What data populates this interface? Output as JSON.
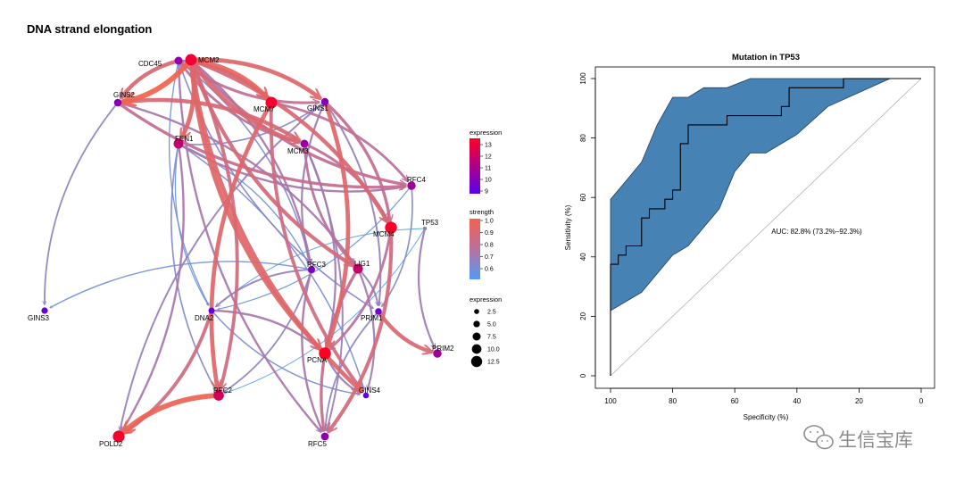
{
  "chart_data": [
    {
      "type": "network",
      "title": "DNA strand elongation",
      "nodes": [
        {
          "id": "CDC45",
          "label": "CDC45",
          "expression": 10.0
        },
        {
          "id": "MCM2",
          "label": "MCM2",
          "expression": 12.6
        },
        {
          "id": "GINS2",
          "label": "GINS2",
          "expression": 9.7
        },
        {
          "id": "MCM7",
          "label": "MCM7",
          "expression": 12.7
        },
        {
          "id": "GINS1",
          "label": "GINS1",
          "expression": 9.6
        },
        {
          "id": "FEN1",
          "label": "FEN1",
          "expression": 11.3
        },
        {
          "id": "MCM3",
          "label": "MCM3",
          "expression": 10.0
        },
        {
          "id": "RFC4",
          "label": "RFC4",
          "expression": 10.3
        },
        {
          "id": "MCM4",
          "label": "MCM4",
          "expression": 12.9
        },
        {
          "id": "TP53",
          "label": "TP53",
          "expression": 1.5
        },
        {
          "id": "RFC3",
          "label": "RFC3",
          "expression": 9.3
        },
        {
          "id": "LIG1",
          "label": "LIG1",
          "expression": 11.4
        },
        {
          "id": "GINS3",
          "label": "GINS3",
          "expression": 8.8
        },
        {
          "id": "DNA2",
          "label": "DNA2",
          "expression": 8.6
        },
        {
          "id": "PRIM1",
          "label": "PRIM1",
          "expression": 9.0
        },
        {
          "id": "PRIM2",
          "label": "PRIM2",
          "expression": 10.3
        },
        {
          "id": "PCNA",
          "label": "PCNA",
          "expression": 13.0
        },
        {
          "id": "RFC2",
          "label": "RFC2",
          "expression": 11.8
        },
        {
          "id": "GINS4",
          "label": "GINS4",
          "expression": 8.4
        },
        {
          "id": "POLD2",
          "label": "POLD2",
          "expression": 12.8
        },
        {
          "id": "RFC5",
          "label": "RFC5",
          "expression": 9.9
        }
      ],
      "edges": [
        {
          "from": "MCM2",
          "to": "GINS2",
          "strength": 1.0
        },
        {
          "from": "MCM2",
          "to": "MCM7",
          "strength": 0.95
        },
        {
          "from": "MCM2",
          "to": "GINS1",
          "strength": 0.92
        },
        {
          "from": "MCM2",
          "to": "FEN1",
          "strength": 0.93
        },
        {
          "from": "MCM2",
          "to": "MCM3",
          "strength": 0.9
        },
        {
          "from": "MCM2",
          "to": "MCM4",
          "strength": 0.9
        },
        {
          "from": "MCM2",
          "to": "RFC4",
          "strength": 0.82
        },
        {
          "from": "MCM2",
          "to": "LIG1",
          "strength": 0.88
        },
        {
          "from": "MCM2",
          "to": "PCNA",
          "strength": 0.93
        },
        {
          "from": "MCM2",
          "to": "GINS4",
          "strength": 0.92
        },
        {
          "from": "MCM2",
          "to": "RFC2",
          "strength": 0.86
        },
        {
          "from": "MCM2",
          "to": "RFC3",
          "strength": 0.74
        },
        {
          "from": "CDC45",
          "to": "GINS2",
          "strength": 0.9
        },
        {
          "from": "CDC45",
          "to": "MCM7",
          "strength": 0.82
        },
        {
          "from": "CDC45",
          "to": "GINS1",
          "strength": 0.8
        },
        {
          "from": "CDC45",
          "to": "MCM3",
          "strength": 0.78
        },
        {
          "from": "CDC45",
          "to": "DNA2",
          "strength": 0.62
        },
        {
          "from": "CDC45",
          "to": "RFC3",
          "strength": 0.65
        },
        {
          "from": "CDC45",
          "to": "PRIM1",
          "strength": 0.66
        },
        {
          "from": "CDC45",
          "to": "RFC5",
          "strength": 0.74
        },
        {
          "from": "GINS2",
          "to": "MCM3",
          "strength": 0.9
        },
        {
          "from": "GINS2",
          "to": "RFC4",
          "strength": 0.82
        },
        {
          "from": "GINS2",
          "to": "GINS3",
          "strength": 0.68
        },
        {
          "from": "GINS2",
          "to": "LIG1",
          "strength": 0.74
        },
        {
          "from": "GINS1",
          "to": "MCM4",
          "strength": 0.82
        },
        {
          "from": "GINS1",
          "to": "PCNA",
          "strength": 0.92
        },
        {
          "from": "GINS1",
          "to": "RFC3",
          "strength": 0.72
        },
        {
          "from": "GINS1",
          "to": "PRIM1",
          "strength": 0.7
        },
        {
          "from": "GINS1",
          "to": "POLD2",
          "strength": 0.7
        },
        {
          "from": "GINS1",
          "to": "FEN1",
          "strength": 0.66
        },
        {
          "from": "MCM7",
          "to": "RFC4",
          "strength": 0.78
        },
        {
          "from": "MCM7",
          "to": "RFC2",
          "strength": 0.92
        },
        {
          "from": "MCM7",
          "to": "GINS4",
          "strength": 0.86
        },
        {
          "from": "FEN1",
          "to": "RFC4",
          "strength": 0.74
        },
        {
          "from": "FEN1",
          "to": "POLD2",
          "strength": 0.74
        },
        {
          "from": "FEN1",
          "to": "RFC3",
          "strength": 0.62
        },
        {
          "from": "FEN1",
          "to": "DNA2",
          "strength": 0.6
        },
        {
          "from": "FEN1",
          "to": "RFC2",
          "strength": 0.66
        },
        {
          "from": "FEN1",
          "to": "GINS4",
          "strength": 0.64
        },
        {
          "from": "MCM3",
          "to": "LIG1",
          "strength": 0.78
        },
        {
          "from": "MCM3",
          "to": "RFC5",
          "strength": 0.7
        },
        {
          "from": "MCM3",
          "to": "PCNA",
          "strength": 0.72
        },
        {
          "from": "MCM3",
          "to": "MCM4",
          "strength": 0.8
        },
        {
          "from": "RFC4",
          "to": "PRIM1",
          "strength": 0.66
        },
        {
          "from": "RFC4",
          "to": "DNA2",
          "strength": 0.6
        },
        {
          "from": "MCM4",
          "to": "RFC5",
          "strength": 0.88
        },
        {
          "from": "MCM4",
          "to": "PCNA",
          "strength": 0.78
        },
        {
          "from": "TP53",
          "to": "PRIM2",
          "strength": 0.72
        },
        {
          "from": "TP53",
          "to": "DNA2",
          "strength": 0.55
        },
        {
          "from": "TP53",
          "to": "RFC2",
          "strength": 0.55
        },
        {
          "from": "RFC3",
          "to": "GINS3",
          "strength": 0.62
        },
        {
          "from": "RFC3",
          "to": "RFC2",
          "strength": 0.68
        },
        {
          "from": "RFC3",
          "to": "RFC5",
          "strength": 0.74
        },
        {
          "from": "RFC3",
          "to": "DNA2",
          "strength": 0.7
        },
        {
          "from": "LIG1",
          "to": "RFC5",
          "strength": 0.82
        },
        {
          "from": "LIG1",
          "to": "PRIM1",
          "strength": 0.7
        },
        {
          "from": "LIG1",
          "to": "GINS4",
          "strength": 0.72
        },
        {
          "from": "DNA2",
          "to": "POLD2",
          "strength": 0.86
        },
        {
          "from": "DNA2",
          "to": "PCNA",
          "strength": 0.74
        },
        {
          "from": "DNA2",
          "to": "GINS4",
          "strength": 0.64
        },
        {
          "from": "PRIM1",
          "to": "PRIM2",
          "strength": 0.9
        },
        {
          "from": "PRIM1",
          "to": "RFC5",
          "strength": 0.68
        },
        {
          "from": "PCNA",
          "to": "GINS4",
          "strength": 0.72
        },
        {
          "from": "RFC2",
          "to": "POLD2",
          "strength": 0.98
        }
      ],
      "legend_expression_color": {
        "title": "expression",
        "ticks": [
          "9",
          "10",
          "11",
          "12",
          "13"
        ],
        "low_color": "#5a00ee",
        "high_color": "#ff0022"
      },
      "legend_strength": {
        "title": "strength",
        "ticks": [
          "0.6",
          "0.7",
          "0.8",
          "0.9",
          "1.0"
        ],
        "low_color": "#4f9cf4",
        "mid_color": "#b9709e",
        "high_color": "#f2624e"
      },
      "legend_expression_size": {
        "title": "expression",
        "ticks": [
          "2.5",
          "5.0",
          "7.5",
          "10.0",
          "12.5"
        ]
      }
    },
    {
      "type": "line",
      "title": "Mutation in TP53",
      "xlabel": "Specificity (%)",
      "ylabel": "Sensitivity (%)",
      "xlim": [
        100,
        0
      ],
      "ylim": [
        0,
        100
      ],
      "xticks": [
        100,
        80,
        60,
        40,
        20,
        0
      ],
      "yticks": [
        0,
        20,
        40,
        60,
        80,
        100
      ],
      "annotation": "AUC: 82.8% (73.2%–92.3%)",
      "series": [
        {
          "name": "ROC",
          "x": [
            100,
            100,
            97.5,
            97.5,
            95,
            95,
            90,
            90,
            87.5,
            87.5,
            82.5,
            82.5,
            80,
            80,
            77.5,
            77.5,
            75,
            75,
            72.5,
            72.5,
            62.5,
            62.5,
            47.5,
            47.5,
            45,
            45,
            42.5,
            42.5,
            25,
            25,
            0
          ],
          "y": [
            0,
            37.5,
            37.5,
            40.6,
            40.6,
            43.7,
            43.7,
            53.1,
            53.1,
            56.2,
            56.2,
            59.4,
            59.4,
            62.5,
            62.5,
            78.1,
            78.1,
            84.4,
            84.4,
            84.4,
            84.4,
            87.5,
            87.5,
            87.5,
            87.5,
            90.6,
            90.6,
            96.9,
            96.9,
            100,
            100
          ]
        },
        {
          "name": "CI upper",
          "x": [
            100,
            95,
            90,
            85,
            80,
            75,
            70,
            62.5,
            55,
            40,
            25,
            10
          ],
          "y": [
            59.4,
            65.6,
            71.9,
            84.4,
            93.7,
            93.7,
            96.9,
            96.9,
            100,
            100,
            100,
            100
          ]
        },
        {
          "name": "CI lower",
          "x": [
            100,
            90,
            80,
            75,
            65,
            60,
            55,
            50,
            40,
            30,
            10
          ],
          "y": [
            21.9,
            28.1,
            40.6,
            43.7,
            56.2,
            68.7,
            75,
            75,
            81.2,
            90.6,
            100
          ]
        }
      ],
      "fill_color": "#4682b4",
      "reference_line": "diagonal"
    }
  ],
  "watermark": {
    "text": "生信宝库"
  }
}
